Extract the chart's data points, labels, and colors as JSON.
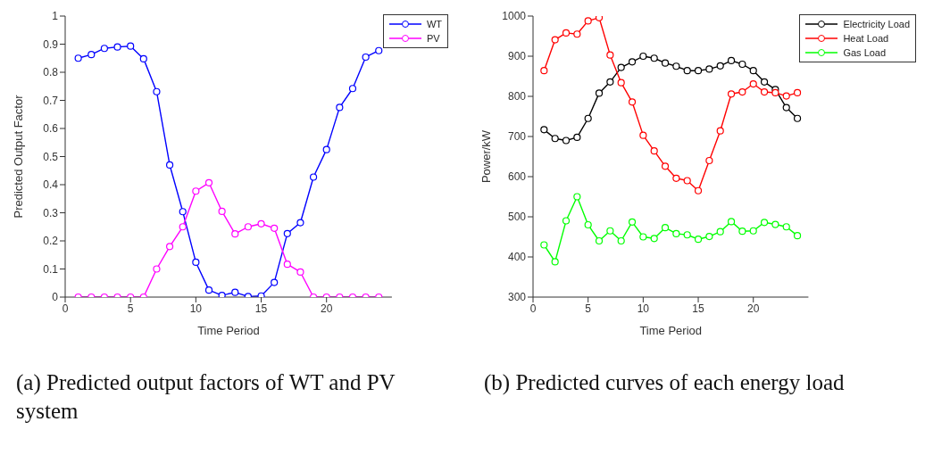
{
  "chart_data": [
    {
      "type": "line",
      "xlabel": "Time Period",
      "ylabel": "Predicted Output Factor",
      "x": [
        1,
        2,
        3,
        4,
        5,
        6,
        7,
        8,
        9,
        10,
        11,
        12,
        13,
        14,
        15,
        16,
        17,
        18,
        19,
        20,
        21,
        22,
        23,
        24
      ],
      "xlim": [
        0,
        25
      ],
      "xticks": [
        0,
        5,
        10,
        15,
        20
      ],
      "ylim": [
        0,
        1
      ],
      "yticks": [
        0,
        0.1,
        0.2,
        0.3,
        0.4,
        0.5,
        0.6,
        0.7,
        0.8,
        0.9,
        1
      ],
      "grid": false,
      "legend": "top right",
      "marker": "circle",
      "line_style": "solid",
      "annotations": [
        "(a) Predicted output factors of WT and PV system"
      ],
      "series": [
        {
          "name": "WT",
          "color": "#0000ff",
          "values": [
            0.85,
            0.863,
            0.885,
            0.89,
            0.893,
            0.848,
            0.731,
            0.47,
            0.304,
            0.124,
            0.025,
            0.006,
            0.017,
            0.002,
            0.004,
            0.052,
            0.226,
            0.265,
            0.427,
            0.525,
            0.675,
            0.742,
            0.854,
            0.877
          ]
        },
        {
          "name": "PV",
          "color": "#ff00ff",
          "values": [
            0,
            0,
            0,
            0,
            0,
            0,
            0.1,
            0.18,
            0.25,
            0.377,
            0.407,
            0.305,
            0.225,
            0.25,
            0.261,
            0.245,
            0.117,
            0.089,
            0,
            0,
            0,
            0,
            0,
            0
          ]
        }
      ]
    },
    {
      "type": "line",
      "xlabel": "Time Period",
      "ylabel": "Power/kW",
      "x": [
        1,
        2,
        3,
        4,
        5,
        6,
        7,
        8,
        9,
        10,
        11,
        12,
        13,
        14,
        15,
        16,
        17,
        18,
        19,
        20,
        21,
        22,
        23,
        24
      ],
      "xlim": [
        0,
        25
      ],
      "xticks": [
        0,
        5,
        10,
        15,
        20
      ],
      "ylim": [
        300,
        1000
      ],
      "yticks": [
        300,
        400,
        500,
        600,
        700,
        800,
        900,
        1000
      ],
      "grid": false,
      "legend": "top right",
      "marker": "circle",
      "line_style": "solid",
      "annotations": [
        "(b) Predicted curves of each energy load"
      ],
      "series": [
        {
          "name": "Electricity Load",
          "color": "#000000",
          "values": [
            717,
            695,
            690,
            698,
            745,
            808,
            836,
            872,
            886,
            900,
            895,
            883,
            875,
            864,
            864,
            868,
            876,
            889,
            880,
            864,
            836,
            817,
            772,
            745
          ]
        },
        {
          "name": "Heat Load",
          "color": "#ff0000",
          "values": [
            864,
            941,
            958,
            955,
            988,
            996,
            903,
            834,
            786,
            703,
            664,
            626,
            596,
            590,
            565,
            640,
            714,
            806,
            811,
            831,
            811,
            809,
            801,
            809
          ]
        },
        {
          "name": "Gas Load",
          "color": "#00ff00",
          "values": [
            430,
            388,
            490,
            550,
            480,
            440,
            465,
            440,
            487,
            450,
            446,
            473,
            458,
            455,
            444,
            451,
            463,
            488,
            464,
            465,
            486,
            481,
            475,
            453
          ]
        }
      ]
    }
  ]
}
